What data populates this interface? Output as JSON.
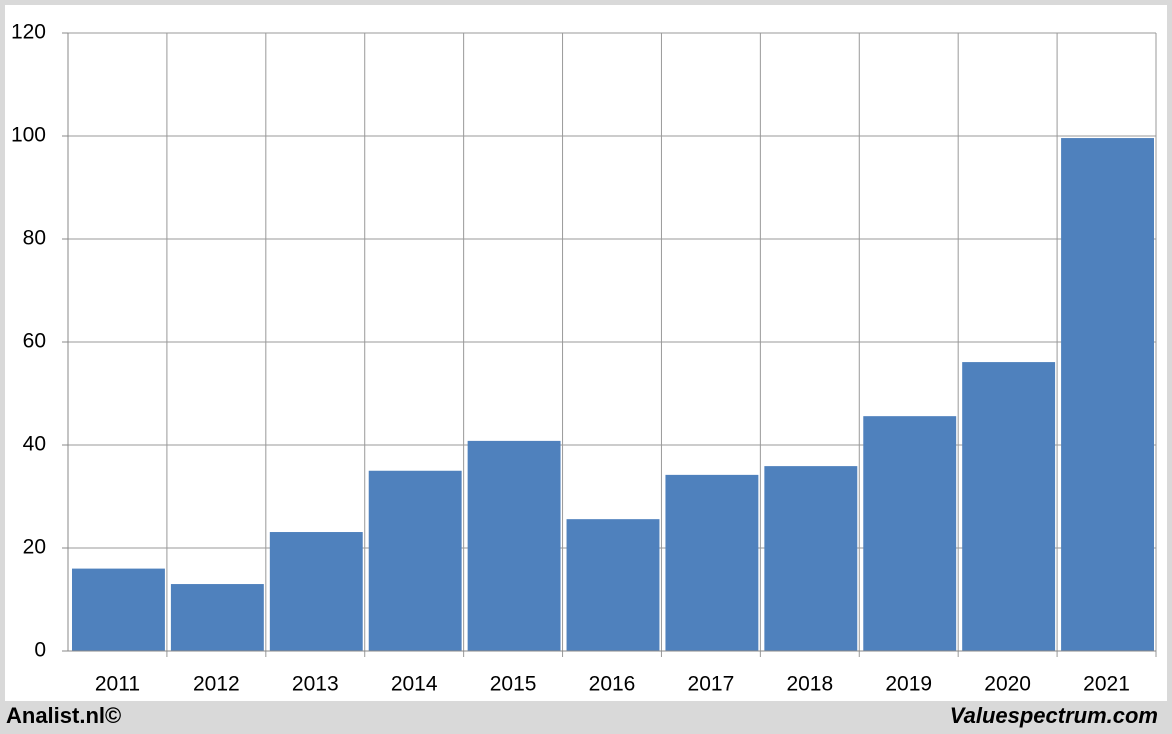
{
  "chart_data": {
    "type": "bar",
    "categories": [
      "2011",
      "2012",
      "2013",
      "2014",
      "2015",
      "2016",
      "2017",
      "2018",
      "2019",
      "2020",
      "2021"
    ],
    "values": [
      16,
      13,
      23.1,
      35,
      40.8,
      25.6,
      34.2,
      35.9,
      45.6,
      56.1,
      99.6
    ],
    "color": "#4f81bd",
    "ylim": [
      0,
      120
    ],
    "yticks": [
      0,
      20,
      40,
      60,
      80,
      100,
      120
    ],
    "grid": true,
    "vertical_grid": true
  },
  "footer": {
    "left": "Analist.nl©",
    "right": "Valuespectrum.com"
  }
}
